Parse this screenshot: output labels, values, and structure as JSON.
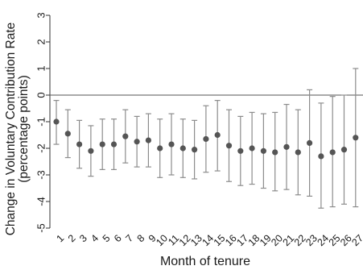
{
  "chart_data": {
    "type": "scatter",
    "title": "",
    "xlabel": "Month of tenure",
    "ylabel_lines": [
      "Change in Voluntary Contribution Rate",
      "(percentage points)"
    ],
    "ylim": [
      -5,
      3
    ],
    "y_ticks": [
      -5,
      -4,
      -3,
      -2,
      -1,
      0,
      1,
      2,
      3
    ],
    "x_ticks": [
      1,
      2,
      3,
      4,
      5,
      6,
      7,
      8,
      9,
      10,
      11,
      12,
      13,
      14,
      15,
      16,
      17,
      18,
      19,
      20,
      21,
      22,
      23,
      24,
      25,
      26,
      27
    ],
    "reference_line": 0,
    "grid": false,
    "colors": {
      "points": "#555555",
      "error_bars": "#8c8c8c",
      "reference_line": "#555555",
      "axis": "#333333"
    },
    "points": [
      {
        "x": 1,
        "y": -1.0,
        "lo": -1.85,
        "hi": -0.2
      },
      {
        "x": 2,
        "y": -1.45,
        "lo": -2.35,
        "hi": -0.55
      },
      {
        "x": 3,
        "y": -1.85,
        "lo": -2.75,
        "hi": -0.95
      },
      {
        "x": 4,
        "y": -2.1,
        "lo": -3.05,
        "hi": -1.15
      },
      {
        "x": 5,
        "y": -1.85,
        "lo": -2.8,
        "hi": -0.9
      },
      {
        "x": 6,
        "y": -1.85,
        "lo": -2.8,
        "hi": -0.9
      },
      {
        "x": 7,
        "y": -1.55,
        "lo": -2.55,
        "hi": -0.55
      },
      {
        "x": 8,
        "y": -1.75,
        "lo": -2.7,
        "hi": -0.8
      },
      {
        "x": 9,
        "y": -1.7,
        "lo": -2.7,
        "hi": -0.7
      },
      {
        "x": 10,
        "y": -2.0,
        "lo": -3.1,
        "hi": -0.9
      },
      {
        "x": 11,
        "y": -1.85,
        "lo": -3.0,
        "hi": -0.7
      },
      {
        "x": 12,
        "y": -2.0,
        "lo": -3.1,
        "hi": -0.9
      },
      {
        "x": 13,
        "y": -2.05,
        "lo": -3.15,
        "hi": -0.95
      },
      {
        "x": 14,
        "y": -1.65,
        "lo": -2.9,
        "hi": -0.4
      },
      {
        "x": 15,
        "y": -1.5,
        "lo": -2.85,
        "hi": -0.2
      },
      {
        "x": 16,
        "y": -1.9,
        "lo": -3.25,
        "hi": -0.55
      },
      {
        "x": 17,
        "y": -2.1,
        "lo": -3.4,
        "hi": -0.8
      },
      {
        "x": 18,
        "y": -2.0,
        "lo": -3.35,
        "hi": -0.65
      },
      {
        "x": 19,
        "y": -2.1,
        "lo": -3.5,
        "hi": -0.7
      },
      {
        "x": 20,
        "y": -2.15,
        "lo": -3.6,
        "hi": -0.65
      },
      {
        "x": 21,
        "y": -1.95,
        "lo": -3.55,
        "hi": -0.35
      },
      {
        "x": 22,
        "y": -2.15,
        "lo": -3.75,
        "hi": -0.55
      },
      {
        "x": 23,
        "y": -1.8,
        "lo": -3.8,
        "hi": 0.2
      },
      {
        "x": 24,
        "y": -2.3,
        "lo": -4.25,
        "hi": -0.3
      },
      {
        "x": 25,
        "y": -2.15,
        "lo": -4.2,
        "hi": -0.05
      },
      {
        "x": 26,
        "y": -2.05,
        "lo": -4.1,
        "hi": 0.0
      },
      {
        "x": 27,
        "y": -1.6,
        "lo": -4.2,
        "hi": 1.0
      }
    ]
  }
}
